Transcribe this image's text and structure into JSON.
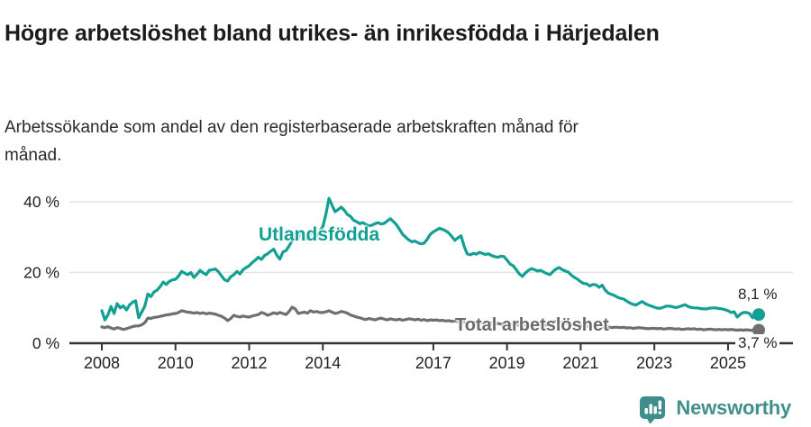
{
  "chart_data": {
    "type": "line",
    "title": "Högre arbetslöshet bland utrikes- än inrikesfödda i Härjedalen",
    "subtitle": "Arbetssökande som andel av den registerbaserade arbetskraften månad för månad.",
    "frequency": "monthly",
    "x_range": [
      "2008-01",
      "2025-11"
    ],
    "ylim": [
      0,
      44
    ],
    "grid": "horizontal",
    "unit": "%",
    "yticks": [
      {
        "value": 0,
        "label": "0 %"
      },
      {
        "value": 20,
        "label": "20 %"
      },
      {
        "value": 40,
        "label": "40 %"
      }
    ],
    "xticks": [
      {
        "year": 2008,
        "label": "2008"
      },
      {
        "year": 2010,
        "label": "2010"
      },
      {
        "year": 2012,
        "label": "2012"
      },
      {
        "year": 2014,
        "label": "2014"
      },
      {
        "year": 2017,
        "label": "2017"
      },
      {
        "year": 2019,
        "label": "2019"
      },
      {
        "year": 2021,
        "label": "2021"
      },
      {
        "year": 2023,
        "label": "2023"
      },
      {
        "year": 2025,
        "label": "2025"
      }
    ],
    "series": [
      {
        "name": "Total arbetslöshet",
        "color": "#6f6f6f",
        "end_label": "3,7 %",
        "end_value": 3.7,
        "values": [
          4.6,
          4.4,
          4.7,
          4.3,
          4.0,
          4.4,
          4.2,
          3.9,
          4.1,
          4.4,
          4.7,
          4.9,
          4.9,
          5.2,
          5.8,
          7.1,
          7.0,
          7.3,
          7.4,
          7.6,
          7.8,
          8.0,
          8.1,
          8.3,
          8.4,
          8.7,
          9.2,
          9.0,
          8.8,
          8.7,
          8.5,
          8.7,
          8.4,
          8.6,
          8.3,
          8.5,
          8.4,
          8.2,
          7.9,
          7.6,
          7.1,
          6.4,
          7.0,
          7.9,
          7.6,
          7.4,
          7.7,
          7.5,
          7.4,
          7.7,
          7.9,
          8.1,
          8.7,
          8.4,
          7.9,
          8.2,
          8.6,
          8.3,
          8.7,
          8.4,
          8.1,
          9.0,
          10.2,
          9.7,
          8.4,
          8.6,
          8.8,
          8.5,
          9.2,
          8.8,
          9.0,
          8.7,
          8.7,
          8.9,
          9.2,
          8.8,
          8.4,
          8.6,
          9.0,
          8.8,
          8.5,
          8.0,
          7.7,
          7.4,
          7.2,
          6.9,
          6.7,
          7.0,
          6.8,
          6.6,
          6.9,
          7.1,
          6.8,
          6.6,
          6.9,
          6.7,
          6.6,
          6.8,
          6.5,
          6.7,
          6.9,
          6.8,
          6.6,
          6.8,
          6.5,
          6.7,
          6.4,
          6.6,
          6.5,
          6.6,
          6.4,
          6.5,
          6.3,
          6.4,
          6.2,
          6.3,
          6.1,
          6.2,
          6.0,
          6.1,
          6.0,
          5.9,
          5.8,
          5.9,
          5.7,
          5.8,
          5.6,
          5.7,
          5.5,
          5.6,
          5.4,
          5.5,
          5.4,
          5.3,
          5.4,
          5.2,
          5.1,
          5.2,
          5.0,
          5.1,
          4.9,
          5.0,
          4.9,
          5.0,
          5.1,
          5.2,
          5.6,
          6.0,
          6.2,
          6.1,
          5.9,
          5.7,
          5.6,
          5.4,
          5.2,
          5.1,
          5.0,
          4.9,
          4.8,
          4.9,
          4.7,
          4.8,
          4.6,
          4.7,
          4.5,
          4.6,
          4.4,
          4.5,
          4.5,
          4.4,
          4.5,
          4.3,
          4.4,
          4.2,
          4.3,
          4.4,
          4.3,
          4.2,
          4.1,
          4.2,
          4.2,
          4.1,
          4.2,
          4.0,
          4.1,
          4.2,
          4.1,
          4.0,
          4.1,
          3.9,
          4.0,
          4.1,
          4.0,
          4.1,
          3.9,
          4.0,
          3.8,
          3.9,
          4.0,
          3.9,
          3.8,
          3.9,
          3.8,
          3.9,
          3.8,
          3.9,
          3.8,
          3.7,
          3.8,
          3.7,
          3.8,
          3.7,
          3.6,
          3.7,
          3.7
        ]
      },
      {
        "name": "Utlandsfödda",
        "color": "#13a094",
        "end_label": "8,1 %",
        "end_value": 8.1,
        "values": [
          9.2,
          6.6,
          8.0,
          10.4,
          8.4,
          11.2,
          10.0,
          10.6,
          9.4,
          10.8,
          11.6,
          12.0,
          7.2,
          8.8,
          10.5,
          13.9,
          13.2,
          14.5,
          15.0,
          16.0,
          17.3,
          16.6,
          17.5,
          17.9,
          18.1,
          19.0,
          20.3,
          19.8,
          19.4,
          20.0,
          18.6,
          19.5,
          20.6,
          19.9,
          19.4,
          20.6,
          20.8,
          21.0,
          20.2,
          19.0,
          17.9,
          17.6,
          18.8,
          19.4,
          20.3,
          19.6,
          20.8,
          21.4,
          21.9,
          22.8,
          23.5,
          24.3,
          23.7,
          24.8,
          25.3,
          26.0,
          26.6,
          24.9,
          23.8,
          25.8,
          26.2,
          27.5,
          29.0,
          31.2,
          29.8,
          31.5,
          30.4,
          29.5,
          30.8,
          31.6,
          30.4,
          31.8,
          33.0,
          36.5,
          41.0,
          39.0,
          37.2,
          37.8,
          38.5,
          37.6,
          36.4,
          35.9,
          34.8,
          34.4,
          33.8,
          34.1,
          33.6,
          33.2,
          33.4,
          33.8,
          34.1,
          33.7,
          33.9,
          34.6,
          35.2,
          34.4,
          33.5,
          32.2,
          30.8,
          30.0,
          29.2,
          28.7,
          28.9,
          28.4,
          28.1,
          28.3,
          29.4,
          30.8,
          31.5,
          32.0,
          32.5,
          32.2,
          31.8,
          31.2,
          30.2,
          29.1,
          29.8,
          30.4,
          27.5,
          25.3,
          25.0,
          25.4,
          25.2,
          25.7,
          25.4,
          25.1,
          25.3,
          24.8,
          24.5,
          24.3,
          24.6,
          24.5,
          23.5,
          22.4,
          21.9,
          20.8,
          19.6,
          18.9,
          19.9,
          20.6,
          21.1,
          20.8,
          20.4,
          20.6,
          20.1,
          19.7,
          19.4,
          20.3,
          21.0,
          21.4,
          20.8,
          20.4,
          20.1,
          19.2,
          18.6,
          18.1,
          17.4,
          16.9,
          16.8,
          16.2,
          16.6,
          16.5,
          15.8,
          16.4,
          15.0,
          14.2,
          13.8,
          13.5,
          13.0,
          12.7,
          12.5,
          11.9,
          11.4,
          11.0,
          10.8,
          11.3,
          11.8,
          11.2,
          10.8,
          10.5,
          10.2,
          9.9,
          9.9,
          10.2,
          10.5,
          10.5,
          10.3,
          10.1,
          10.3,
          10.6,
          10.9,
          10.4,
          10.1,
          10.0,
          10.0,
          9.8,
          9.7,
          9.7,
          9.9,
          10.0,
          10.0,
          9.8,
          9.7,
          9.5,
          9.2,
          8.7,
          8.9,
          7.4,
          8.2,
          8.7,
          8.7,
          8.4,
          7.2,
          7.9,
          8.1
        ]
      }
    ],
    "colors": {
      "grid": "#e3e3e3",
      "axis": "#333333",
      "text": "#222222"
    }
  },
  "footer": {
    "brand": "Newsworthy",
    "brand_color": "#40908d",
    "logo_icon": "bar-chart-speech-bubble-icon"
  }
}
